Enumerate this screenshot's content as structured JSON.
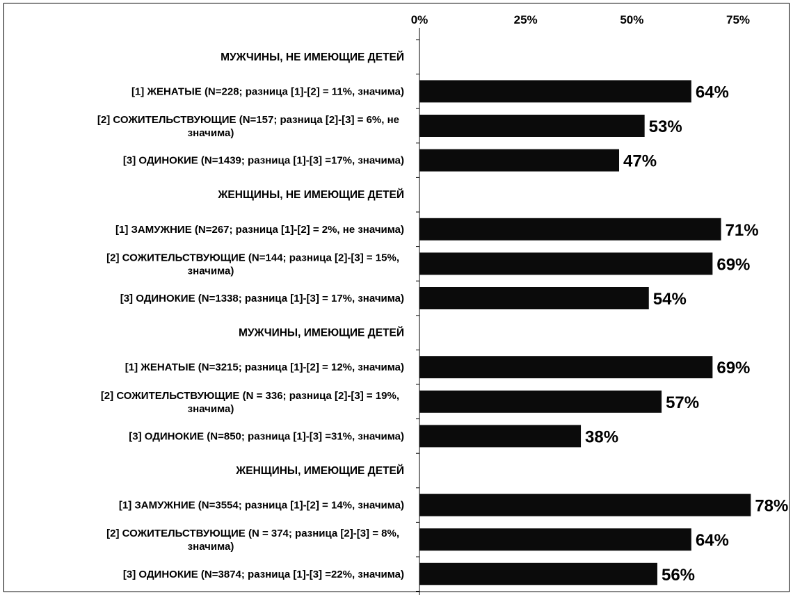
{
  "chart_data": {
    "type": "bar",
    "orientation": "horizontal",
    "xlim": [
      0,
      80
    ],
    "x_ticks": [
      "0%",
      "25%",
      "50%",
      "75%"
    ],
    "x_tick_values": [
      0,
      25,
      50,
      75
    ],
    "x_axis_position": "top",
    "bar_color": "#0b0b0b",
    "rows": [
      {
        "kind": "group",
        "label": "МУЖЧИНЫ, НЕ ИМЕЮЩИЕ ДЕТЕЙ"
      },
      {
        "kind": "bar",
        "label_lines": [
          "[1] ЖЕНАТЫЕ (N=228; разница [1]-[2] = 11%, значима)"
        ],
        "value": 64,
        "value_label": "64%"
      },
      {
        "kind": "bar",
        "label_lines": [
          "[2] СОЖИТЕЛЬСТВУЮЩИЕ (N=157; разница [2]-[3] = 6%, не",
          "значима)"
        ],
        "value": 53,
        "value_label": "53%"
      },
      {
        "kind": "bar",
        "label_lines": [
          "[3] ОДИНОКИЕ (N=1439; разница [1]-[3] =17%, значима)"
        ],
        "value": 47,
        "value_label": "47%"
      },
      {
        "kind": "group",
        "label": "ЖЕНЩИНЫ, НЕ ИМЕЮЩИЕ ДЕТЕЙ"
      },
      {
        "kind": "bar",
        "label_lines": [
          "[1] ЗАМУЖНИЕ (N=267; разница [1]-[2] = 2%, не значима)"
        ],
        "value": 71,
        "value_label": "71%"
      },
      {
        "kind": "bar",
        "label_lines": [
          "[2] СОЖИТЕЛЬСТВУЮЩИЕ (N=144; разница [2]-[3] = 15%,",
          "значима)"
        ],
        "value": 69,
        "value_label": "69%"
      },
      {
        "kind": "bar",
        "label_lines": [
          "[3] ОДИНОКИЕ (N=1338; разница [1]-[3] = 17%, значима)"
        ],
        "value": 54,
        "value_label": "54%"
      },
      {
        "kind": "group",
        "label": "МУЖЧИНЫ, ИМЕЮЩИЕ ДЕТЕЙ"
      },
      {
        "kind": "bar",
        "label_lines": [
          "[1] ЖЕНАТЫЕ (N=3215; разница [1]-[2] = 12%, значима)"
        ],
        "value": 69,
        "value_label": "69%"
      },
      {
        "kind": "bar",
        "label_lines": [
          "[2] СОЖИТЕЛЬСТВУЮЩИЕ (N = 336; разница [2]-[3] = 19%,",
          "значима)"
        ],
        "value": 57,
        "value_label": "57%"
      },
      {
        "kind": "bar",
        "label_lines": [
          "[3] ОДИНОКИЕ (N=850; разница [1]-[3] =31%, значима)"
        ],
        "value": 38,
        "value_label": "38%"
      },
      {
        "kind": "group",
        "label": "ЖЕНЩИНЫ, ИМЕЮЩИЕ ДЕТЕЙ"
      },
      {
        "kind": "bar",
        "label_lines": [
          "[1] ЗАМУЖНИЕ  (N=3554; разница [1]-[2] = 14%, значима)"
        ],
        "value": 78,
        "value_label": "78%"
      },
      {
        "kind": "bar",
        "label_lines": [
          "[2] СОЖИТЕЛЬСТВУЮЩИЕ (N = 374; разница [2]-[3] = 8%,",
          "значима)"
        ],
        "value": 64,
        "value_label": "64%"
      },
      {
        "kind": "bar",
        "label_lines": [
          "[3] ОДИНОКИЕ (N=3874; разница [1]-[3] =22%, значима)"
        ],
        "value": 56,
        "value_label": "56%"
      }
    ]
  }
}
